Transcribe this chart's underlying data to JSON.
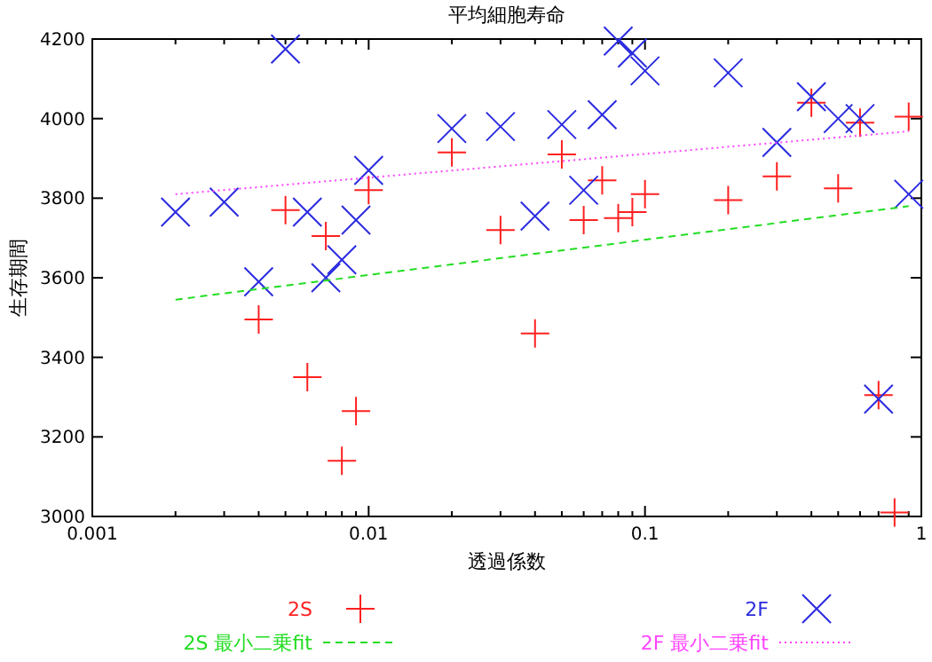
{
  "chart_data": {
    "type": "scatter",
    "title": "平均細胞寿命",
    "xlabel": "透過係数",
    "ylabel": "生存期間",
    "log": "x",
    "grid": false,
    "legend": "bottom",
    "xlim": [
      0.001,
      1
    ],
    "ylim": [
      3000,
      4200
    ],
    "xticks": [
      0.001,
      {
        "value": 0.002,
        "label": null
      },
      {
        "value": 0.003,
        "label": null
      },
      {
        "value": 0.004,
        "label": null
      },
      {
        "value": 0.005,
        "label": null
      },
      {
        "value": 0.006,
        "label": null
      },
      {
        "value": 0.007,
        "label": null
      },
      {
        "value": 0.008,
        "label": null
      },
      {
        "value": 0.009,
        "label": null
      },
      0.01,
      {
        "value": 0.02,
        "label": null
      },
      {
        "value": 0.03,
        "label": null
      },
      {
        "value": 0.04,
        "label": null
      },
      {
        "value": 0.05,
        "label": null
      },
      {
        "value": 0.06,
        "label": null
      },
      {
        "value": 0.07,
        "label": null
      },
      {
        "value": 0.08,
        "label": null
      },
      {
        "value": 0.09,
        "label": null
      },
      0.1,
      {
        "value": 0.2,
        "label": null
      },
      {
        "value": 0.3,
        "label": null
      },
      {
        "value": 0.4,
        "label": null
      },
      {
        "value": 0.5,
        "label": null
      },
      {
        "value": 0.6,
        "label": null
      },
      {
        "value": 0.7,
        "label": null
      },
      {
        "value": 0.8,
        "label": null
      },
      {
        "value": 0.9,
        "label": null
      },
      1
    ],
    "yticks": [
      3000,
      3200,
      3400,
      3600,
      3800,
      4000,
      4200
    ],
    "series": [
      {
        "name": "2S",
        "marker": "plus",
        "color": "#ff2020",
        "x": [
          0.004,
          0.005,
          0.006,
          0.007,
          0.008,
          0.009,
          0.01,
          0.02,
          0.03,
          0.04,
          0.05,
          0.06,
          0.07,
          0.08,
          0.09,
          0.1,
          0.2,
          0.3,
          0.4,
          0.5,
          0.6,
          0.7,
          0.8,
          0.9
        ],
        "values": [
          3495,
          3770,
          3350,
          3705,
          3140,
          3265,
          3820,
          3915,
          3720,
          3460,
          3910,
          3745,
          3845,
          3750,
          3765,
          3810,
          3795,
          3855,
          4040,
          3825,
          3990,
          3305,
          3010,
          4005
        ]
      },
      {
        "name": "2F",
        "marker": "cross",
        "color": "#2a2ae0",
        "x": [
          0.002,
          0.003,
          0.004,
          0.005,
          0.006,
          0.007,
          0.008,
          0.009,
          0.01,
          0.02,
          0.03,
          0.04,
          0.05,
          0.06,
          0.07,
          0.08,
          0.09,
          0.1,
          0.2,
          0.3,
          0.4,
          0.5,
          0.6,
          0.7,
          0.9
        ],
        "values": [
          3765,
          3790,
          3590,
          4175,
          3765,
          3600,
          3645,
          3745,
          3870,
          3975,
          3980,
          3755,
          3985,
          3820,
          4010,
          4195,
          4165,
          4120,
          4115,
          3940,
          4055,
          4000,
          4000,
          3295,
          3810
        ]
      },
      {
        "name": "2S 最小二乗fit",
        "type": "line",
        "marker": "none",
        "line_style": "dashed",
        "color": "#22dd22",
        "x": [
          0.002,
          0.9
        ],
        "values": [
          3545,
          3780
        ]
      },
      {
        "name": "2F 最小二乗fit",
        "type": "line",
        "marker": "none",
        "line_style": "dotted",
        "color": "#ff44ff",
        "x": [
          0.002,
          0.9
        ],
        "values": [
          3810,
          3968
        ]
      }
    ]
  }
}
